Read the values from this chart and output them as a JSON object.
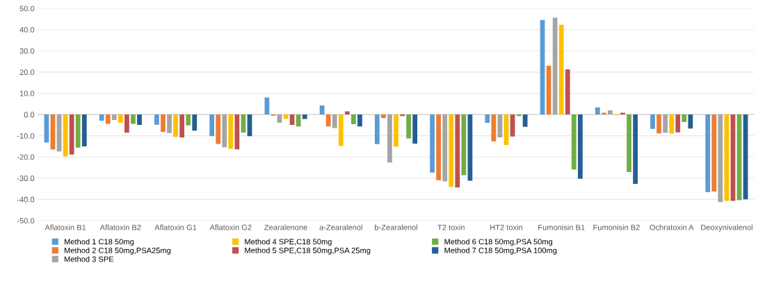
{
  "chart_data": {
    "type": "bar",
    "categories": [
      "Aflatoxin B1",
      "Aflatoxin B2",
      "Aflatoxin G1",
      "Aflatoxin G2",
      "Zearalenone",
      "a-Zearalenol",
      "b-Zearalenol",
      "T2 toxin",
      "HT2 toxin",
      "Fumonisin B1",
      "Fumonisin B2",
      "Ochratoxin A",
      "Deoxynivalenol"
    ],
    "series": [
      {
        "name": "Method 1 C18 50mg",
        "color": "#5b9bd5",
        "values": [
          -13.2,
          -2.9,
          -4.8,
          -10.2,
          8.0,
          4.3,
          -14.0,
          -27.4,
          -3.9,
          44.6,
          3.4,
          -6.8,
          -36.6
        ]
      },
      {
        "name": "Method 2 C18 50mg,PSA25mg",
        "color": "#ed7d31",
        "values": [
          -16.5,
          -4.4,
          -8.2,
          -13.9,
          -0.6,
          -5.6,
          -1.7,
          -31.0,
          -12.7,
          23.0,
          0.8,
          -8.9,
          -36.3
        ]
      },
      {
        "name": "Method 3 SPE",
        "color": "#a5a5a5",
        "values": [
          -17.4,
          -2.6,
          -8.7,
          -15.4,
          -3.9,
          -6.4,
          -22.6,
          -31.5,
          -10.8,
          45.6,
          2.0,
          -8.6,
          -41.3
        ]
      },
      {
        "name": "Method 4 SPE,C18 50mg",
        "color": "#ffc000",
        "values": [
          -19.8,
          -3.9,
          -10.5,
          -16.2,
          -2.0,
          -14.9,
          -15.2,
          -34.1,
          -14.4,
          42.3,
          -0.3,
          -9.0,
          -40.7
        ]
      },
      {
        "name": "Method 5 SPE,C18 50mg,PSA 25mg",
        "color": "#c0504d",
        "values": [
          -18.9,
          -8.6,
          -10.9,
          -16.4,
          -4.9,
          1.5,
          -0.7,
          -34.4,
          -10.4,
          21.3,
          0.8,
          -8.4,
          -40.7
        ]
      },
      {
        "name": "Method 6 C18 50mg,PSA 50mg",
        "color": "#70ad47",
        "values": [
          -15.6,
          -4.4,
          -5.1,
          -8.5,
          -5.6,
          -4.6,
          -11.3,
          -28.6,
          -0.7,
          -25.9,
          -27.1,
          -3.5,
          -40.4
        ]
      },
      {
        "name": "Method 7 C18 50mg,PSA 100mg",
        "color": "#255e91",
        "values": [
          -15.0,
          -4.9,
          -7.6,
          -10.2,
          -2.1,
          -5.6,
          -13.7,
          -31.2,
          -5.8,
          -30.3,
          -32.7,
          -6.6,
          -40.0
        ]
      }
    ],
    "ylim": [
      -50,
      50
    ],
    "yticks": [
      {
        "value": -50,
        "label": "-50.0"
      },
      {
        "value": -40,
        "label": "-40.0"
      },
      {
        "value": -30,
        "label": "-30.0"
      },
      {
        "value": -20,
        "label": "-20.0"
      },
      {
        "value": -10,
        "label": "-10.0"
      },
      {
        "value": 0,
        "label": "0.0"
      },
      {
        "value": 10,
        "label": "10.0"
      },
      {
        "value": 20,
        "label": "20.0"
      },
      {
        "value": 30,
        "label": "30.0"
      },
      {
        "value": 40,
        "label": "40.0"
      },
      {
        "value": 50,
        "label": "50.0"
      }
    ],
    "grid": "y",
    "legend": "bottom"
  }
}
